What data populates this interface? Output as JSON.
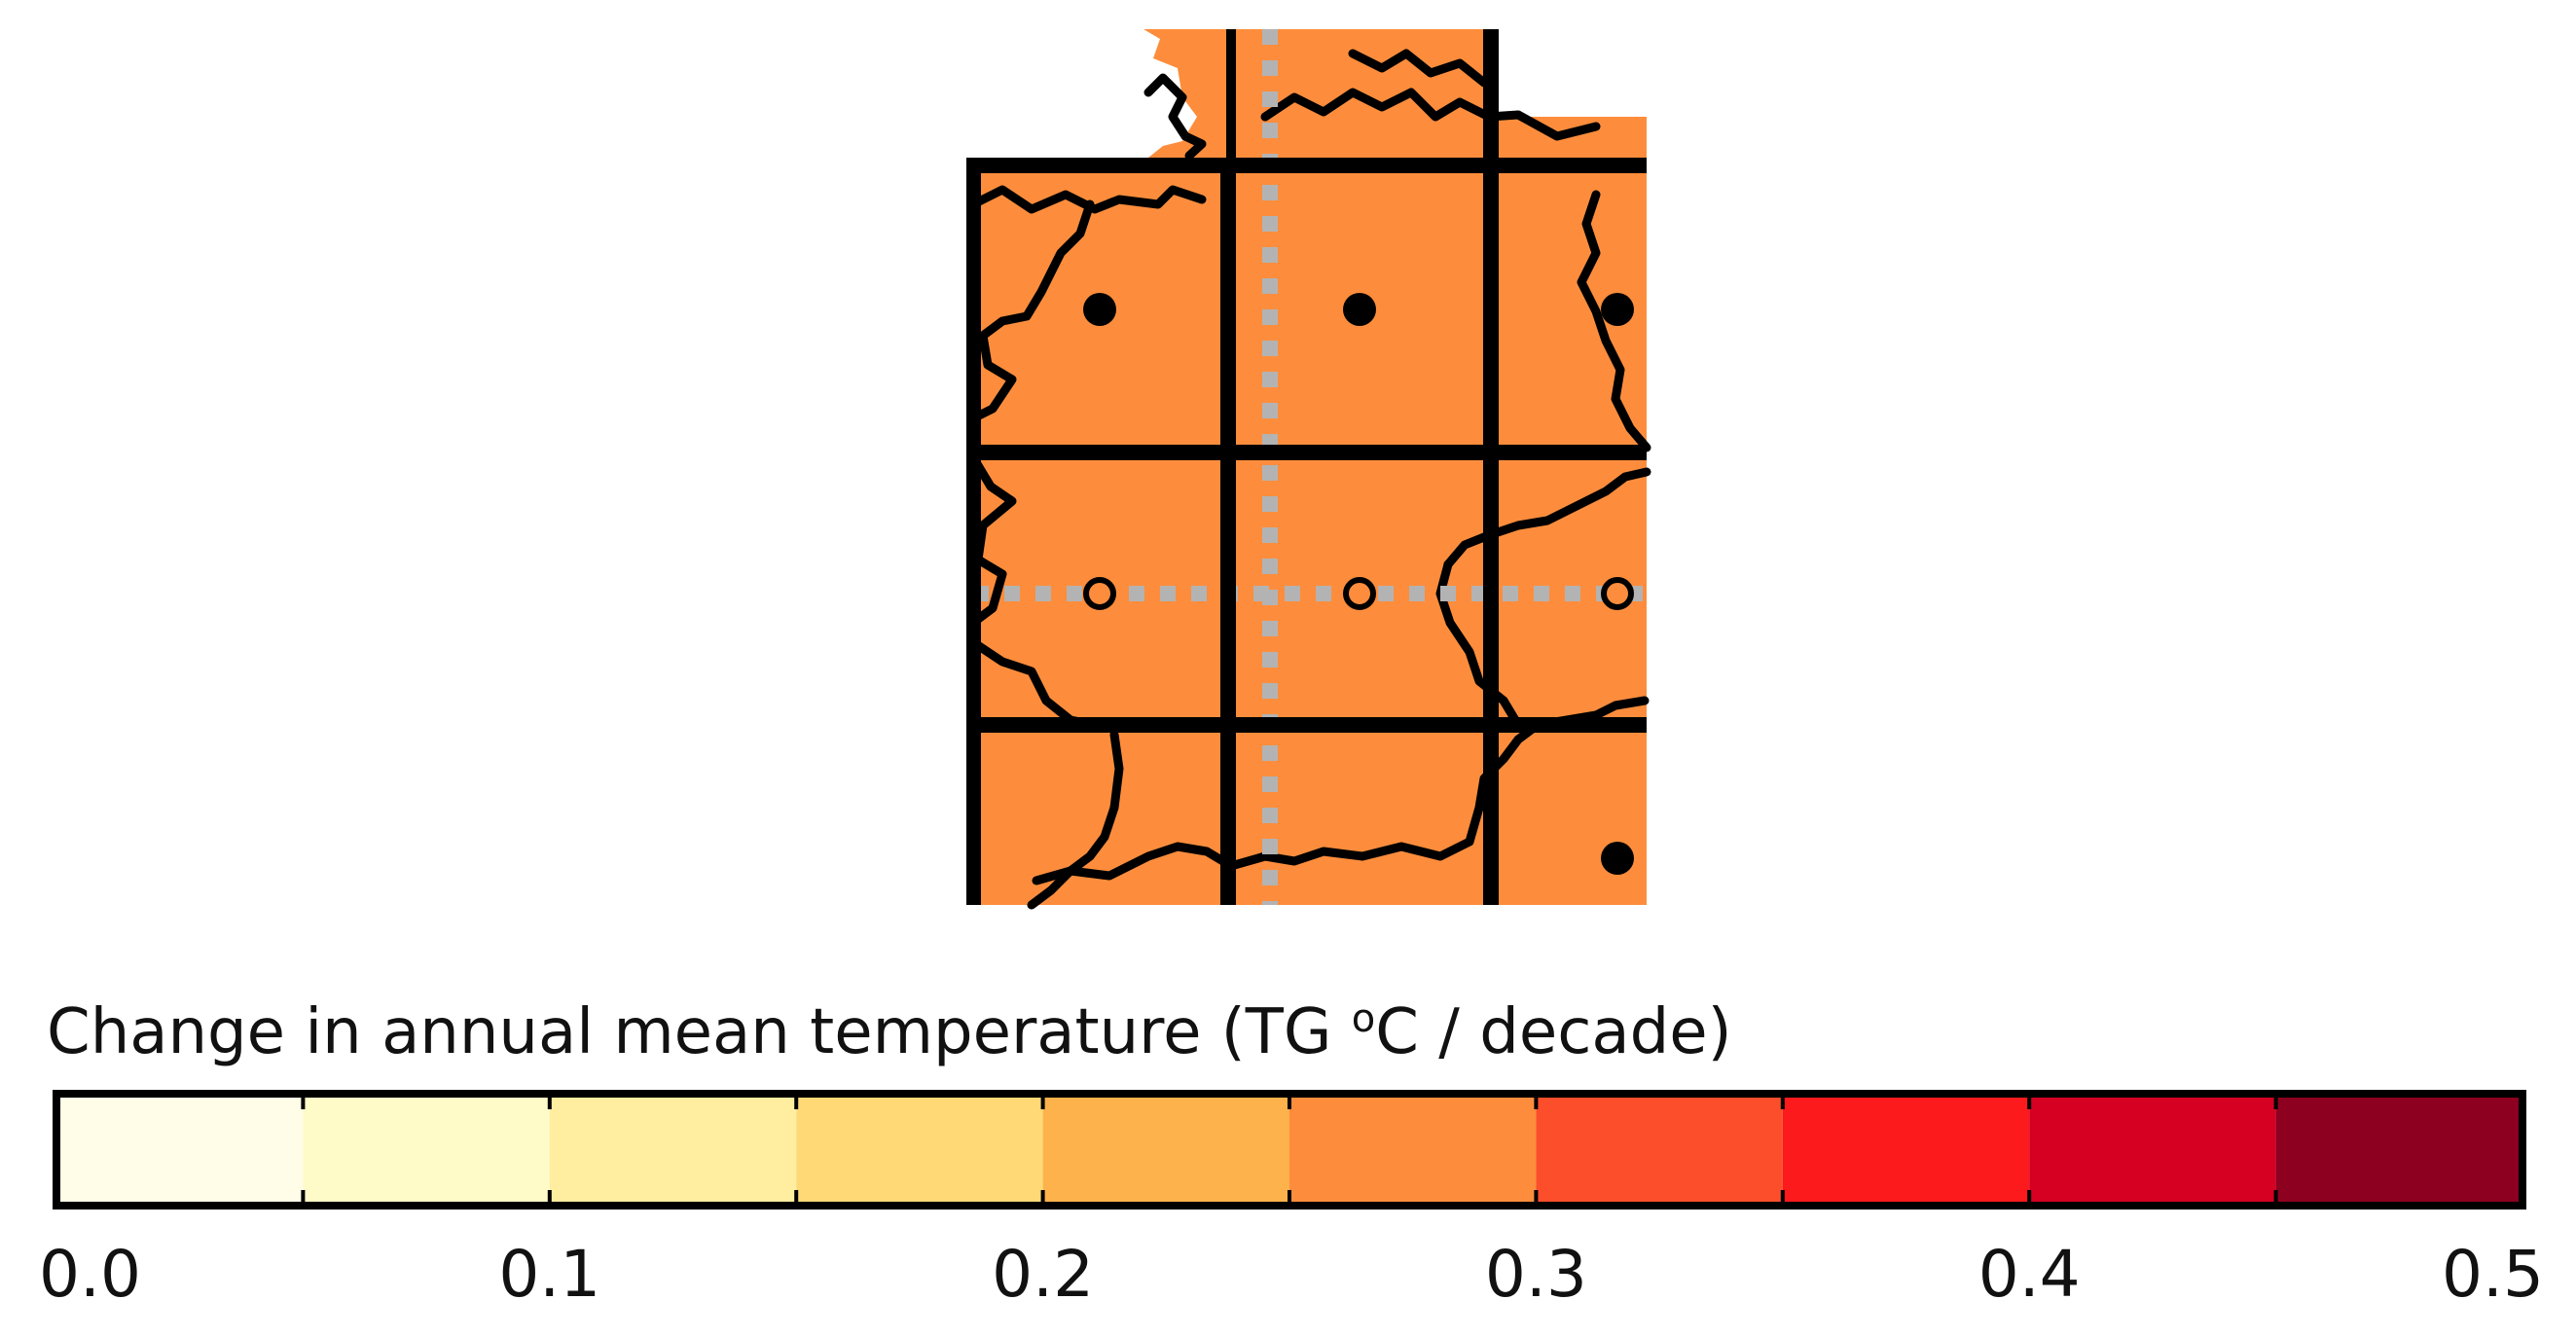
{
  "map": {
    "region": "Germany",
    "fill_color": "#fd8d3c",
    "border_color": "#000000",
    "dotted_line_color": "#b3b3b3",
    "grid_rows": 3,
    "grid_cols": 3,
    "cell_change_values": [
      [
        0.28,
        0.28,
        0.28
      ],
      [
        0.28,
        0.28,
        0.28
      ],
      [
        0.28,
        0.28,
        0.28
      ]
    ],
    "cell_markers": [
      [
        "filled-dot",
        "filled-dot",
        "filled-dot"
      ],
      [
        "open-dot",
        "open-dot",
        "open-dot"
      ],
      [
        "none",
        "none",
        "filled-dot"
      ]
    ]
  },
  "legend": {
    "title_prefix": "Change in annual mean temperature (TG ",
    "title_sup": "o",
    "title_suffix": "C / decade)",
    "bins": [
      {
        "from": 0.0,
        "to": 0.05,
        "color": "#fffce8"
      },
      {
        "from": 0.05,
        "to": 0.1,
        "color": "#fffbc8"
      },
      {
        "from": 0.1,
        "to": 0.15,
        "color": "#ffeda0"
      },
      {
        "from": 0.15,
        "to": 0.2,
        "color": "#fed976"
      },
      {
        "from": 0.2,
        "to": 0.25,
        "color": "#feb24c"
      },
      {
        "from": 0.25,
        "to": 0.3,
        "color": "#fd8d3c"
      },
      {
        "from": 0.3,
        "to": 0.35,
        "color": "#fc4e2a"
      },
      {
        "from": 0.35,
        "to": 0.4,
        "color": "#fd1a1c"
      },
      {
        "from": 0.4,
        "to": 0.45,
        "color": "#d50022"
      },
      {
        "from": 0.45,
        "to": 0.5,
        "color": "#8e0020"
      }
    ],
    "tick_labels": [
      {
        "value": 0.0,
        "label": "0.0"
      },
      {
        "value": 0.1,
        "label": "0.1"
      },
      {
        "value": 0.2,
        "label": "0.2"
      },
      {
        "value": 0.3,
        "label": "0.3"
      },
      {
        "value": 0.4,
        "label": "0.4"
      },
      {
        "value": 0.5,
        "label": "0.5"
      }
    ]
  }
}
